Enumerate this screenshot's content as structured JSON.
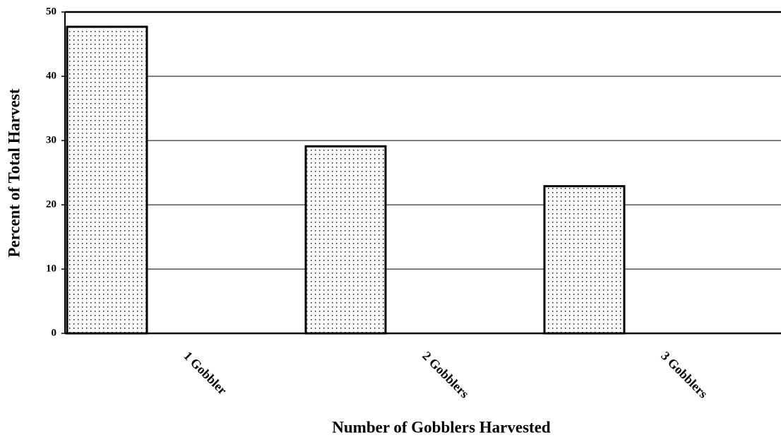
{
  "chart_data": {
    "type": "bar",
    "x_label": "Number of Gobblers Harvested",
    "y_label": "Percent of Total Harvest",
    "categories": [
      "1 Gobbler",
      "2 Gobblers",
      "3 Gobblers"
    ],
    "values": [
      47.7,
      29.1,
      22.9
    ],
    "color": "#000000",
    "ylim": [
      0,
      50
    ],
    "yticks": [
      0,
      10,
      20,
      30,
      40,
      50
    ],
    "grid": true
  }
}
